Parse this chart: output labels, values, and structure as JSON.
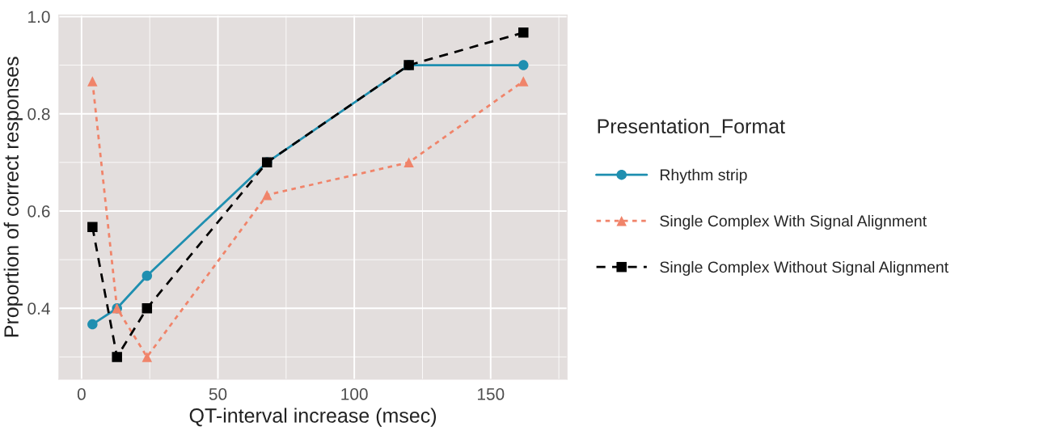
{
  "chart_data": {
    "type": "line",
    "xlabel": "QT-interval increase (msec)",
    "ylabel": "Proportion of correct responses",
    "legend_title": "Presentation_Format",
    "x": [
      4,
      13,
      24,
      68,
      120,
      162
    ],
    "series": [
      {
        "name": "Rhythm strip",
        "color": "#1f8fb0",
        "values": [
          0.367,
          0.4,
          0.467,
          0.7,
          0.9,
          0.9
        ],
        "marker": "circle",
        "line_style": "solid"
      },
      {
        "name": "Single Complex With Signal Alignment",
        "color": "#f0846a",
        "values": [
          0.867,
          0.4,
          0.3,
          0.633,
          0.7,
          0.867
        ],
        "marker": "triangle",
        "line_style": "dotted"
      },
      {
        "name": "Single Complex Without Signal Alignment",
        "color": "#000000",
        "values": [
          0.567,
          0.3,
          0.4,
          0.7,
          0.9,
          0.967
        ],
        "marker": "square",
        "line_style": "dashed"
      }
    ],
    "xlim": [
      -8.3,
      178
    ],
    "ylim": [
      0.254,
      1.003
    ],
    "xticks": [
      0,
      50,
      100,
      150
    ],
    "yticks": [
      {
        "value": 0.4,
        "label": "0.4"
      },
      {
        "value": 0.6,
        "label": "0.6"
      },
      {
        "value": 0.8,
        "label": "0.8"
      },
      {
        "value": 1.0,
        "label": "1.0"
      }
    ],
    "grid": true,
    "legend": "right"
  }
}
